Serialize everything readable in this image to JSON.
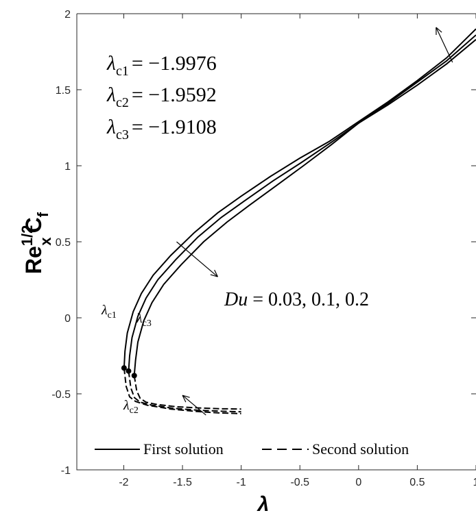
{
  "chart_data": {
    "type": "line",
    "title": "",
    "xlabel": "λ",
    "ylabel": {
      "base": "Re",
      "sup": "1/2",
      "sub": "x",
      "main": "C",
      "main_sub": "f"
    },
    "xlim": [
      -2.4,
      1
    ],
    "ylim": [
      -1,
      2
    ],
    "xticks": [
      -2,
      -1.5,
      -1,
      -0.5,
      0,
      0.5,
      1
    ],
    "xtick_labels": [
      "-2",
      "-1.5",
      "-1",
      "-0.5",
      "0",
      "0.5",
      "1"
    ],
    "yticks": [
      -1,
      -0.5,
      0,
      0.5,
      1,
      1.5,
      2
    ],
    "ytick_labels": [
      "-1",
      "-0.5",
      "0",
      "0.5",
      "1",
      "1.5",
      "2"
    ],
    "grid": false,
    "legend_position": "bottom",
    "legend": [
      {
        "label": "First solution",
        "style": "solid"
      },
      {
        "label": "Second solution",
        "style": "dashed"
      }
    ],
    "critical_values": [
      {
        "sym": "λ",
        "sub": "c1",
        "value": "= −1.9976"
      },
      {
        "sym": "λ",
        "sub": "c2",
        "value": "= −1.9592"
      },
      {
        "sym": "λ",
        "sub": "c3",
        "value": "= −1.9108"
      }
    ],
    "point_labels": [
      {
        "sym": "λ",
        "sub": "c1"
      },
      {
        "sym": "λ",
        "sub": "c2"
      },
      {
        "sym": "λ",
        "sub": "c3"
      }
    ],
    "parameter_label": {
      "name": "Du",
      "text": " = 0.03, 0.1, 0.2"
    },
    "series": [
      {
        "du": 0.03,
        "critical_point": [
          -1.9976,
          -0.33
        ],
        "first": {
          "x": [
            -1.9976,
            -1.99,
            -1.97,
            -1.92,
            -1.85,
            -1.75,
            -1.6,
            -1.4,
            -1.2,
            -1.0,
            -0.75,
            -0.5,
            -0.25,
            0,
            0.25,
            0.5,
            0.75,
            1.0
          ],
          "y": [
            -0.33,
            -0.22,
            -0.1,
            0.04,
            0.16,
            0.28,
            0.41,
            0.56,
            0.69,
            0.8,
            0.93,
            1.05,
            1.16,
            1.29,
            1.42,
            1.56,
            1.71,
            1.9
          ]
        },
        "second": {
          "x": [
            -1.9976,
            -1.98,
            -1.95,
            -1.9,
            -1.8,
            -1.6,
            -1.4,
            -1.2,
            -1.0
          ],
          "y": [
            -0.33,
            -0.45,
            -0.52,
            -0.55,
            -0.575,
            -0.6,
            -0.615,
            -0.625,
            -0.63
          ]
        }
      },
      {
        "du": 0.1,
        "critical_point": [
          -1.9592,
          -0.35
        ],
        "first": {
          "x": [
            -1.9592,
            -1.95,
            -1.93,
            -1.88,
            -1.81,
            -1.71,
            -1.56,
            -1.37,
            -1.17,
            -0.97,
            -0.73,
            -0.49,
            -0.24,
            0,
            0.25,
            0.5,
            0.75,
            1.0
          ],
          "y": [
            -0.35,
            -0.25,
            -0.13,
            0.01,
            0.13,
            0.25,
            0.38,
            0.53,
            0.66,
            0.77,
            0.9,
            1.02,
            1.15,
            1.28,
            1.41,
            1.55,
            1.69,
            1.86
          ]
        },
        "second": {
          "x": [
            -1.9592,
            -1.94,
            -1.91,
            -1.86,
            -1.76,
            -1.58,
            -1.38,
            -1.18,
            -1.0
          ],
          "y": [
            -0.35,
            -0.46,
            -0.525,
            -0.555,
            -0.575,
            -0.595,
            -0.607,
            -0.614,
            -0.618
          ]
        }
      },
      {
        "du": 0.2,
        "critical_point": [
          -1.9108,
          -0.38
        ],
        "first": {
          "x": [
            -1.9108,
            -1.9,
            -1.88,
            -1.83,
            -1.76,
            -1.66,
            -1.51,
            -1.32,
            -1.12,
            -0.93,
            -0.7,
            -0.47,
            -0.23,
            0,
            0.25,
            0.5,
            0.75,
            1.0
          ],
          "y": [
            -0.38,
            -0.28,
            -0.16,
            -0.02,
            0.1,
            0.22,
            0.35,
            0.5,
            0.63,
            0.74,
            0.87,
            1.0,
            1.14,
            1.28,
            1.4,
            1.53,
            1.67,
            1.83
          ]
        },
        "second": {
          "x": [
            -1.9108,
            -1.89,
            -1.86,
            -1.81,
            -1.72,
            -1.55,
            -1.36,
            -1.17,
            -1.0
          ],
          "y": [
            -0.38,
            -0.48,
            -0.53,
            -0.555,
            -0.57,
            -0.585,
            -0.593,
            -0.598,
            -0.6
          ]
        }
      }
    ]
  }
}
